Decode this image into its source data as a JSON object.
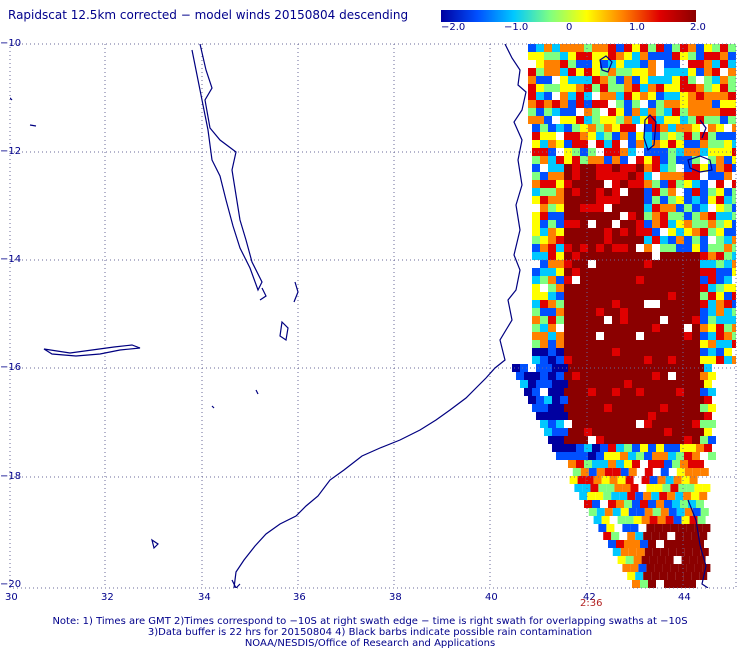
{
  "title": "Rapidscat 12.5km corrected − model winds 20150804 descending",
  "colorbar": {
    "labels": [
      "−2.0",
      "−1.0",
      "0",
      "1.0",
      "2.0"
    ],
    "colors": [
      "#0000a0",
      "#0050ff",
      "#00c8ff",
      "#80ff80",
      "#ffff00",
      "#ff8000",
      "#e00000",
      "#8b0000"
    ]
  },
  "map": {
    "lat_labels": [
      "−10",
      "−12",
      "−14",
      "−16",
      "−18",
      "−20"
    ],
    "lon_labels": [
      "30",
      "32",
      "34",
      "36",
      "38",
      "40",
      "42",
      "44"
    ],
    "orbit_time": "2:36",
    "coastline_color": "#000080",
    "grid_color": "#6a6a9a"
  },
  "notes": [
    "Note: 1) Times are GMT 2)Times correspond to −10S at right swath edge − time is right swath for overlapping swaths at −10S",
    "3)Data buffer is 22 hrs for 20150804 4) Black barbs indicate possible rain contamination",
    "NOAA/NESDIS/Office of Research and Applications"
  ]
}
